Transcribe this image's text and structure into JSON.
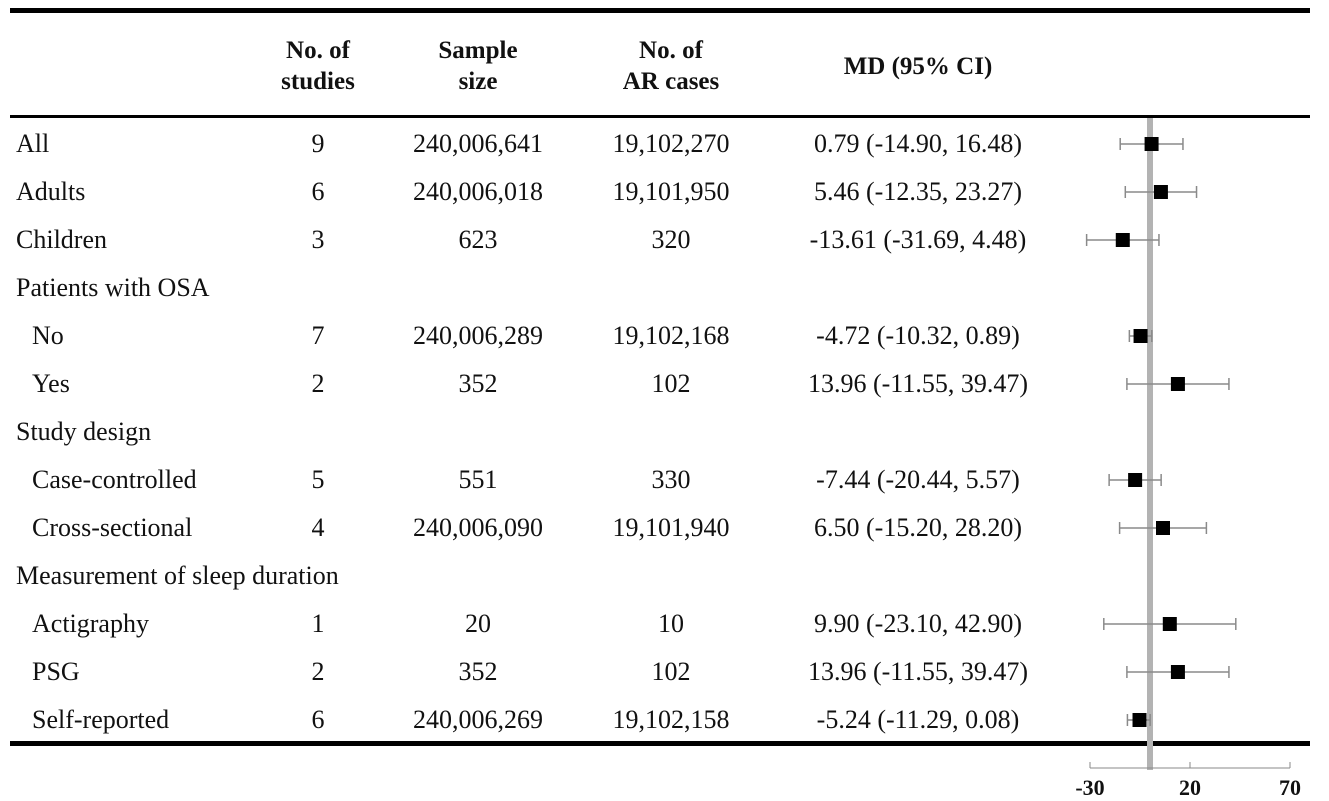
{
  "header": {
    "studies": "No. of\nstudies",
    "sample": "Sample\nsize",
    "cases": "No. of\nAR cases",
    "md": "MD (95% CI)"
  },
  "rows": [
    {
      "label": "All",
      "studies": "9",
      "sample": "240,006,641",
      "cases": "19,102,270",
      "md": "0.79 (-14.90, 16.48)"
    },
    {
      "label": "Adults",
      "studies": "6",
      "sample": "240,006,018",
      "cases": "19,101,950",
      "md": "5.46 (-12.35, 23.27)"
    },
    {
      "label": "Children",
      "studies": "3",
      "sample": "623",
      "cases": "320",
      "md": "-13.61 (-31.69, 4.48)"
    },
    {
      "label": "Patients with OSA",
      "studies": "",
      "sample": "",
      "cases": "",
      "md": ""
    },
    {
      "label": "No",
      "studies": "7",
      "sample": "240,006,289",
      "cases": "19,102,168",
      "md": "-4.72 (-10.32, 0.89)"
    },
    {
      "label": "Yes",
      "studies": "2",
      "sample": "352",
      "cases": "102",
      "md": "13.96 (-11.55, 39.47)"
    },
    {
      "label": "Study design",
      "studies": "",
      "sample": "",
      "cases": "",
      "md": ""
    },
    {
      "label": "Case-controlled",
      "studies": "5",
      "sample": "551",
      "cases": "330",
      "md": "-7.44 (-20.44, 5.57)"
    },
    {
      "label": "Cross-sectional",
      "studies": "4",
      "sample": "240,006,090",
      "cases": "19,101,940",
      "md": "6.50 (-15.20, 28.20)"
    },
    {
      "label": "Measurement of sleep duration",
      "studies": "",
      "sample": "",
      "cases": "",
      "md": ""
    },
    {
      "label": "Actigraphy",
      "studies": "1",
      "sample": "20",
      "cases": "10",
      "md": "9.90 (-23.10, 42.90)"
    },
    {
      "label": "PSG",
      "studies": "2",
      "sample": "352",
      "cases": "102",
      "md": "13.96 (-11.55, 39.47)"
    },
    {
      "label": "Self-reported",
      "studies": "6",
      "sample": "240,006,269",
      "cases": "19,102,158",
      "md": "-5.24 (-11.29, 0.08)"
    }
  ],
  "chart_data": {
    "type": "forest",
    "xlim": [
      -30,
      70
    ],
    "xticks": [
      "-30",
      "20",
      "70"
    ],
    "reference_line": 0,
    "colors": {
      "marker": "#000000",
      "whisker": "#8a8a8a",
      "reference": "#b3b3b3"
    },
    "points": [
      {
        "category": "All",
        "estimate": 0.79,
        "lower": -14.9,
        "upper": 16.48
      },
      {
        "category": "Adults",
        "estimate": 5.46,
        "lower": -12.35,
        "upper": 23.27
      },
      {
        "category": "Children",
        "estimate": -13.61,
        "lower": -31.69,
        "upper": 4.48
      },
      {
        "category": "No",
        "estimate": -4.72,
        "lower": -10.32,
        "upper": 0.89
      },
      {
        "category": "Yes",
        "estimate": 13.96,
        "lower": -11.55,
        "upper": 39.47
      },
      {
        "category": "Case-controlled",
        "estimate": -7.44,
        "lower": -20.44,
        "upper": 5.57
      },
      {
        "category": "Cross-sectional",
        "estimate": 6.5,
        "lower": -15.2,
        "upper": 28.2
      },
      {
        "category": "Actigraphy",
        "estimate": 9.9,
        "lower": -23.1,
        "upper": 42.9
      },
      {
        "category": "PSG",
        "estimate": 13.96,
        "lower": -11.55,
        "upper": 39.47
      },
      {
        "category": "Self-reported",
        "estimate": -5.24,
        "lower": -11.29,
        "upper": 0.08
      }
    ]
  }
}
